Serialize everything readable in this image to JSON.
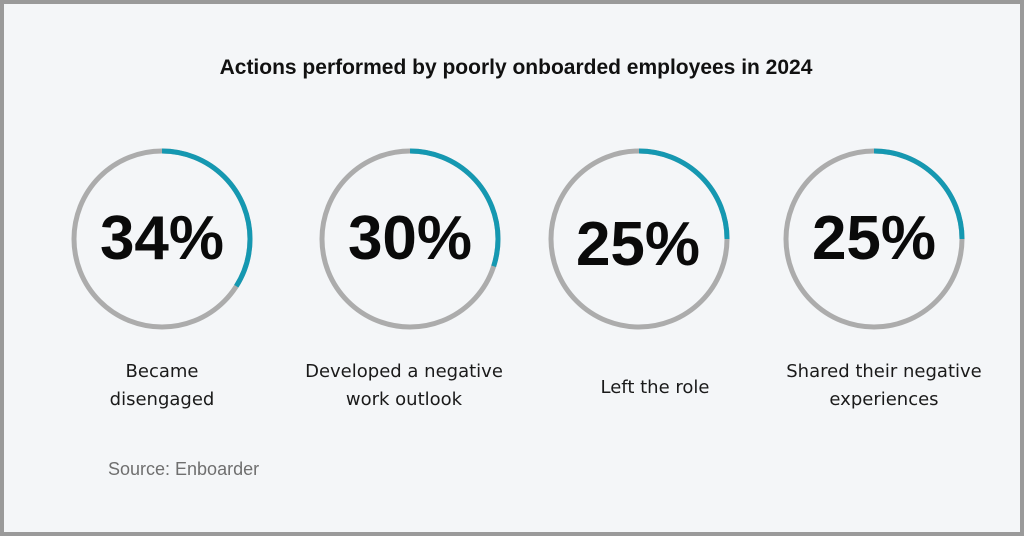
{
  "chart_data": {
    "type": "donut",
    "title": "Actions performed by poorly onboarded employees in 2024",
    "items": [
      {
        "value": 34,
        "display": "34%",
        "label": "Became\ndisengaged"
      },
      {
        "value": 30,
        "display": "30%",
        "label": "Developed a negative\nwork outlook"
      },
      {
        "value": 25,
        "display": "25%",
        "label": "Left the role"
      },
      {
        "value": 25,
        "display": "25%",
        "label": "Shared their negative\nexperiences"
      }
    ],
    "source": "Source: Enboarder"
  },
  "colors": {
    "accent": "#1598b1",
    "track": "#acacac",
    "background": "#f4f6f8",
    "border": "#9a9a9a"
  }
}
